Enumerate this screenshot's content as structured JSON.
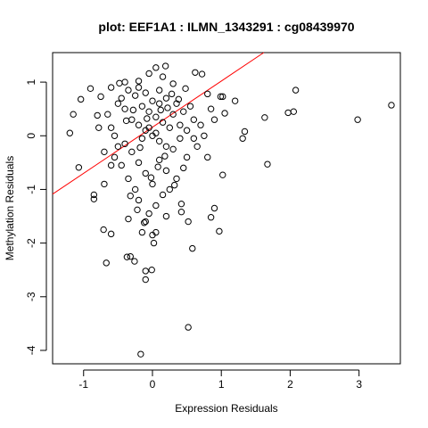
{
  "chart_data": {
    "type": "scatter",
    "title": "plot: EEF1A1 : ILMN_1343291 : cg08439970",
    "xlabel": "Expression Residuals",
    "ylabel": "Methylation Residuals",
    "xlim": [
      -1.45,
      3.6
    ],
    "ylim": [
      -4.25,
      1.55
    ],
    "xticks": [
      -1,
      0,
      1,
      2,
      3
    ],
    "xtick_labels": [
      "-1",
      "0",
      "1",
      "2",
      "3"
    ],
    "yticks": [
      -4,
      -3,
      -2,
      -1,
      0,
      1
    ],
    "ytick_labels": [
      "-4",
      "-3",
      "-2",
      "-1",
      "0",
      "1"
    ],
    "marker": "open-circle",
    "marker_color": "#000000",
    "fit_line": {
      "color": "#ff0000",
      "intercept": 0.16,
      "slope": 0.86
    },
    "points": [
      [
        3.47,
        0.57
      ],
      [
        2.98,
        0.3
      ],
      [
        2.08,
        0.85
      ],
      [
        2.05,
        0.45
      ],
      [
        1.97,
        0.43
      ],
      [
        1.63,
        0.34
      ],
      [
        1.67,
        -0.53
      ],
      [
        1.34,
        0.08
      ],
      [
        1.31,
        -0.05
      ],
      [
        1.05,
        0.42
      ],
      [
        1.02,
        -0.73
      ],
      [
        0.97,
        -1.78
      ],
      [
        0.9,
        -1.35
      ],
      [
        0.85,
        -1.52
      ],
      [
        1.02,
        0.73
      ],
      [
        0.99,
        0.73
      ],
      [
        0.8,
        0.78
      ],
      [
        0.62,
        1.18
      ],
      [
        0.72,
        1.15
      ],
      [
        0.52,
        -3.57
      ],
      [
        0.58,
        -2.1
      ],
      [
        0.52,
        -1.6
      ],
      [
        0.42,
        -1.27
      ],
      [
        -0.17,
        -4.07
      ],
      [
        -0.32,
        -2.25
      ],
      [
        -0.26,
        -2.34
      ],
      [
        -0.1,
        -2.52
      ],
      [
        -0.1,
        -2.68
      ],
      [
        -0.01,
        -2.5
      ],
      [
        -0.37,
        -2.26
      ],
      [
        -0.67,
        -2.37
      ],
      [
        -0.6,
        -1.83
      ],
      [
        -0.71,
        -1.75
      ],
      [
        -0.85,
        -1.18
      ],
      [
        -1.07,
        -0.59
      ],
      [
        -1.2,
        0.05
      ],
      [
        -1.15,
        0.4
      ],
      [
        -0.8,
        0.38
      ],
      [
        -0.75,
        0.73
      ],
      [
        -0.78,
        0.15
      ],
      [
        -0.7,
        -0.3
      ],
      [
        -0.55,
        -0.4
      ],
      [
        -0.9,
        0.88
      ],
      [
        -1.04,
        0.68
      ],
      [
        -0.6,
        0.9
      ],
      [
        -0.4,
        1.0
      ],
      [
        -0.2,
        1.02
      ],
      [
        -0.05,
        1.16
      ],
      [
        0.05,
        1.27
      ],
      [
        0.19,
        1.3
      ],
      [
        0.15,
        1.1
      ],
      [
        0.3,
        0.97
      ],
      [
        0.1,
        0.85
      ],
      [
        0.2,
        0.7
      ],
      [
        0.35,
        0.6
      ],
      [
        0.45,
        0.45
      ],
      [
        0.55,
        0.55
      ],
      [
        0.6,
        0.3
      ],
      [
        0.7,
        0.2
      ],
      [
        0.75,
        0.0
      ],
      [
        0.65,
        -0.2
      ],
      [
        0.5,
        -0.4
      ],
      [
        0.45,
        -0.6
      ],
      [
        0.35,
        -0.8
      ],
      [
        0.25,
        -1.0
      ],
      [
        0.15,
        -1.1
      ],
      [
        0.05,
        -1.3
      ],
      [
        -0.05,
        -1.45
      ],
      [
        -0.1,
        -1.6
      ],
      [
        -0.15,
        -1.8
      ],
      [
        0.0,
        -1.85
      ],
      [
        0.05,
        -1.8
      ],
      [
        -0.2,
        -1.2
      ],
      [
        -0.25,
        -1.0
      ],
      [
        -0.35,
        -0.8
      ],
      [
        -0.45,
        -0.55
      ],
      [
        -0.5,
        -0.2
      ],
      [
        -0.55,
        0.0
      ],
      [
        -0.6,
        0.15
      ],
      [
        -0.65,
        0.4
      ],
      [
        -0.5,
        0.6
      ],
      [
        -0.4,
        0.5
      ],
      [
        -0.3,
        0.3
      ],
      [
        -0.2,
        0.2
      ],
      [
        -0.1,
        0.1
      ],
      [
        0.0,
        0.0
      ],
      [
        0.1,
        -0.1
      ],
      [
        0.2,
        -0.2
      ],
      [
        -0.15,
        0.55
      ],
      [
        -0.05,
        0.45
      ],
      [
        0.05,
        0.35
      ],
      [
        0.15,
        0.25
      ],
      [
        0.25,
        0.15
      ],
      [
        -0.25,
        0.75
      ],
      [
        -0.35,
        0.85
      ],
      [
        -0.45,
        0.7
      ],
      [
        0.0,
        0.65
      ],
      [
        0.1,
        0.6
      ],
      [
        -0.1,
        0.8
      ],
      [
        -0.2,
        0.9
      ],
      [
        0.3,
        0.4
      ],
      [
        0.4,
        0.2
      ],
      [
        0.5,
        0.1
      ],
      [
        0.6,
        -0.05
      ],
      [
        -0.3,
        -0.3
      ],
      [
        -0.2,
        -0.5
      ],
      [
        -0.1,
        -0.7
      ],
      [
        0.0,
        -0.9
      ],
      [
        0.1,
        -0.45
      ],
      [
        0.2,
        -0.65
      ],
      [
        0.3,
        -0.25
      ],
      [
        0.4,
        -0.05
      ],
      [
        -0.4,
        -0.15
      ],
      [
        -0.6,
        -0.55
      ],
      [
        -0.7,
        -0.9
      ],
      [
        -0.85,
        -1.1
      ],
      [
        0.85,
        0.5
      ],
      [
        0.9,
        0.3
      ],
      [
        0.8,
        -0.4
      ],
      [
        1.2,
        0.65
      ],
      [
        -0.05,
        0.15
      ],
      [
        0.05,
        0.05
      ],
      [
        -0.15,
        -0.05
      ],
      [
        0.12,
        0.48
      ],
      [
        -0.08,
        0.32
      ],
      [
        0.22,
        0.52
      ],
      [
        0.28,
        0.78
      ],
      [
        -0.28,
        0.48
      ],
      [
        -0.38,
        0.28
      ],
      [
        0.38,
        0.68
      ],
      [
        0.48,
        0.88
      ],
      [
        -0.48,
        0.98
      ],
      [
        0.18,
        -0.38
      ],
      [
        -0.18,
        -0.22
      ],
      [
        0.08,
        -0.58
      ],
      [
        -0.02,
        -0.78
      ],
      [
        0.32,
        -0.92
      ],
      [
        -0.32,
        -1.12
      ],
      [
        0.42,
        -1.42
      ],
      [
        -0.12,
        -1.62
      ],
      [
        0.02,
        -2.0
      ],
      [
        -0.22,
        -1.38
      ],
      [
        0.2,
        -1.5
      ],
      [
        -0.35,
        -1.55
      ]
    ]
  }
}
